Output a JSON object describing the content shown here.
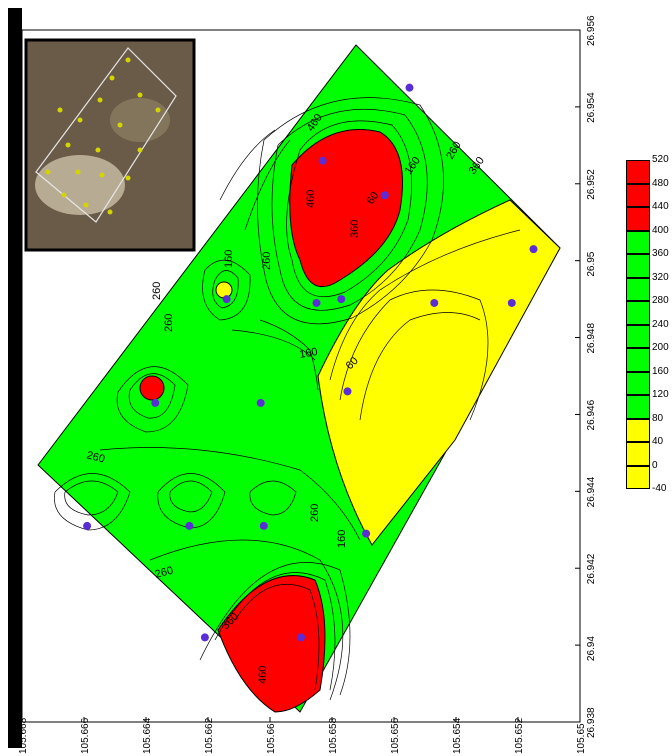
{
  "axes": {
    "x_ticks": [
      "105.668",
      "105.666",
      "105.664",
      "105.662",
      "105.66",
      "105.658",
      "105.656",
      "105.654",
      "105.652",
      "105.65"
    ],
    "y_ticks": [
      "26.938",
      "26.94",
      "26.942",
      "26.944",
      "26.946",
      "26.948",
      "26.95",
      "26.952",
      "26.954",
      "26.956"
    ]
  },
  "legend": {
    "levels": [
      "520",
      "480",
      "440",
      "400",
      "360",
      "320",
      "280",
      "240",
      "200",
      "160",
      "120",
      "80",
      "40",
      "0",
      "-40"
    ]
  },
  "contour_labels": [
    "460",
    "260",
    "360",
    "160",
    "60",
    "360",
    "460",
    "260",
    "160",
    "260",
    "260",
    "160",
    "60",
    "260",
    "260",
    "360",
    "460",
    "260",
    "160"
  ],
  "colors": {
    "red": "#ff0000",
    "green": "#00ff00",
    "yellow": "#ffff00",
    "point": "#5b2dd6"
  },
  "points": [
    {
      "x": 105.6555,
      "y": 26.9545
    },
    {
      "x": 105.6583,
      "y": 26.9526
    },
    {
      "x": 105.6563,
      "y": 26.9517
    },
    {
      "x": 105.6577,
      "y": 26.949
    },
    {
      "x": 105.6585,
      "y": 26.9489
    },
    {
      "x": 105.6547,
      "y": 26.9489
    },
    {
      "x": 105.6522,
      "y": 26.9489
    },
    {
      "x": 105.6515,
      "y": 26.9503
    },
    {
      "x": 105.6614,
      "y": 26.949
    },
    {
      "x": 105.6637,
      "y": 26.9463
    },
    {
      "x": 105.6603,
      "y": 26.9463
    },
    {
      "x": 105.6575,
      "y": 26.9466
    },
    {
      "x": 105.6659,
      "y": 26.9431
    },
    {
      "x": 105.6626,
      "y": 26.9431
    },
    {
      "x": 105.6602,
      "y": 26.9431
    },
    {
      "x": 105.6569,
      "y": 26.9429
    },
    {
      "x": 105.6621,
      "y": 26.9402
    },
    {
      "x": 105.659,
      "y": 26.9402
    }
  ]
}
